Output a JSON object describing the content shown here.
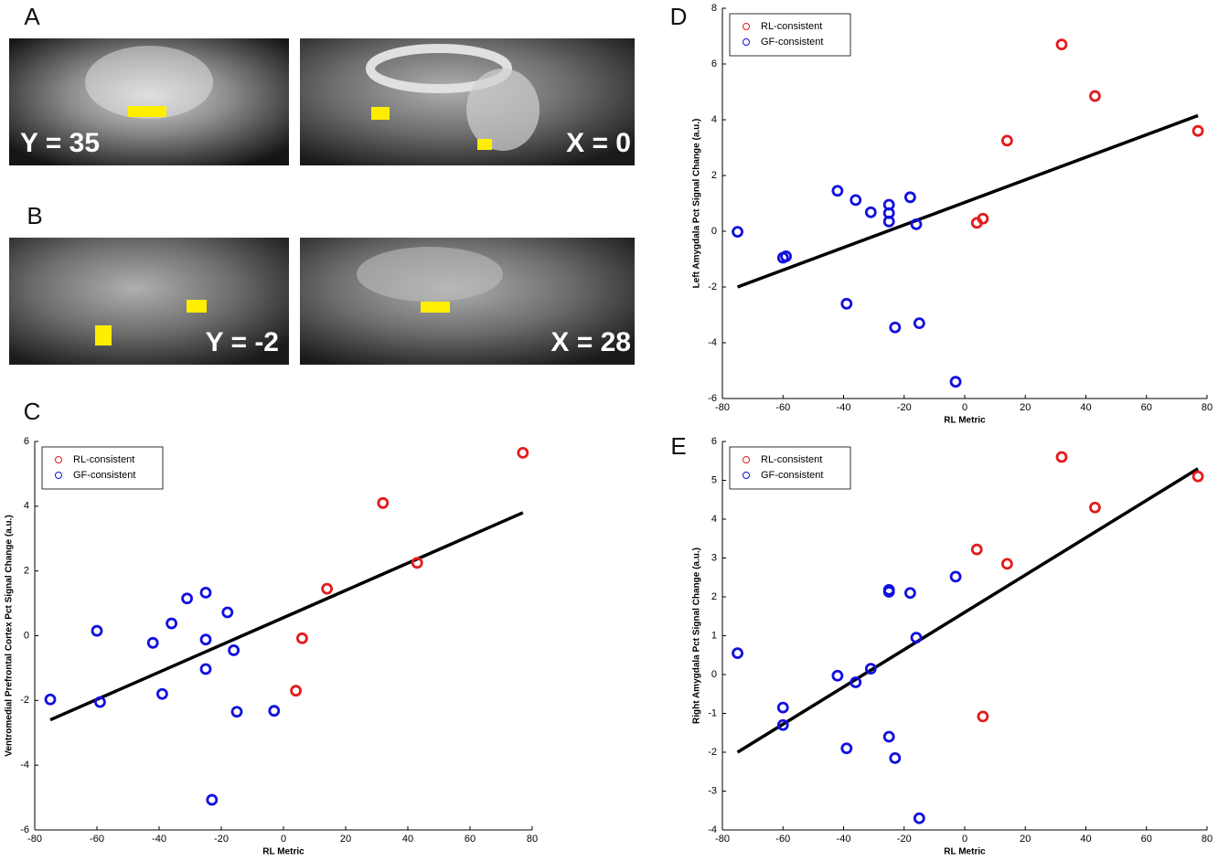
{
  "panel_labels": [
    "A",
    "B",
    "C",
    "D",
    "E"
  ],
  "brain_images": [
    {
      "label": "Y = 35"
    },
    {
      "label": "X = 0"
    },
    {
      "label": "Y = -2"
    },
    {
      "label": "X = 28"
    }
  ],
  "chart_data": [
    {
      "type": "scatter",
      "xlabel": "RL Metric",
      "ylabel": "Ventromedial Prefrontal Cortex Pct Signal Change (a.u.)",
      "xlim": [
        -80,
        80
      ],
      "xticks": [
        -80,
        -60,
        -40,
        -20,
        0,
        20,
        40,
        60,
        80
      ],
      "ylim": [
        -6,
        6
      ],
      "yticks": [
        -6,
        -4,
        -2,
        0,
        2,
        4,
        6
      ],
      "legend": "upper left",
      "series": [
        {
          "name": "RL-consistent",
          "color": "#e41a1c",
          "x": [
            77,
            32,
            43,
            14,
            6,
            4
          ],
          "values": [
            5.65,
            4.1,
            2.25,
            1.45,
            -0.08,
            -1.7
          ]
        },
        {
          "name": "GF-consistent",
          "color": "#1010e0",
          "x": [
            -75,
            -60,
            -59,
            -42,
            -39,
            -36,
            -31,
            -25,
            -25,
            -25,
            -18,
            -16,
            -15,
            -23,
            -3
          ],
          "values": [
            -1.97,
            0.15,
            -2.05,
            -0.22,
            -1.8,
            0.38,
            1.15,
            1.33,
            -0.12,
            -1.03,
            0.72,
            -0.45,
            -2.35,
            -5.07,
            -2.32
          ]
        }
      ],
      "fit": {
        "color": "#000000",
        "x": [
          -75,
          77
        ],
        "values": [
          -2.6,
          3.8
        ]
      }
    },
    {
      "type": "scatter",
      "xlabel": "RL Metric",
      "ylabel": "Left Amygdala Pct Signal Change (a.u.)",
      "xlim": [
        -80,
        80
      ],
      "xticks": [
        -80,
        -60,
        -40,
        -20,
        0,
        20,
        40,
        60,
        80
      ],
      "ylim": [
        -6,
        8
      ],
      "yticks": [
        -6,
        -4,
        -2,
        0,
        2,
        4,
        6,
        8
      ],
      "legend": "upper left",
      "series": [
        {
          "name": "RL-consistent",
          "color": "#e41a1c",
          "x": [
            77,
            32,
            43,
            14,
            4,
            6
          ],
          "values": [
            3.6,
            6.7,
            4.85,
            3.25,
            0.3,
            0.45
          ]
        },
        {
          "name": "GF-consistent",
          "color": "#1010e0",
          "x": [
            -75,
            -60,
            -59,
            -42,
            -39,
            -36,
            -31,
            -25,
            -25,
            -25,
            -18,
            -16,
            -15,
            -23,
            -3
          ],
          "values": [
            -0.02,
            -0.95,
            -0.9,
            1.45,
            -2.6,
            1.12,
            0.68,
            0.95,
            0.65,
            0.35,
            1.22,
            0.25,
            -3.3,
            -3.45,
            -5.4
          ]
        }
      ],
      "fit": {
        "color": "#000000",
        "x": [
          -75,
          77
        ],
        "values": [
          -2.0,
          4.15
        ]
      }
    },
    {
      "type": "scatter",
      "xlabel": "RL Metric",
      "ylabel": "Right Amygdala Pct Signal Change (a.u.)",
      "xlim": [
        -80,
        80
      ],
      "xticks": [
        -80,
        -60,
        -40,
        -20,
        0,
        20,
        40,
        60,
        80
      ],
      "ylim": [
        -4,
        6
      ],
      "yticks": [
        -4,
        -3,
        -2,
        -1,
        0,
        1,
        2,
        3,
        4,
        5,
        6
      ],
      "legend": "upper left",
      "series": [
        {
          "name": "RL-consistent",
          "color": "#e41a1c",
          "x": [
            77,
            32,
            43,
            14,
            4,
            6
          ],
          "values": [
            5.1,
            5.6,
            4.3,
            2.85,
            3.22,
            -1.08
          ]
        },
        {
          "name": "GF-consistent",
          "color": "#1010e0",
          "x": [
            -75,
            -60,
            -60,
            -42,
            -39,
            -36,
            -31,
            -25,
            -25,
            -25,
            -18,
            -16,
            -23,
            -15,
            -3
          ],
          "values": [
            0.55,
            -0.85,
            -1.3,
            -0.03,
            -1.9,
            -0.2,
            0.15,
            2.18,
            2.13,
            -1.6,
            2.1,
            0.95,
            -2.15,
            -3.7,
            2.52
          ]
        }
      ],
      "fit": {
        "color": "#000000",
        "x": [
          -75,
          77
        ],
        "values": [
          -2.0,
          5.3
        ]
      }
    }
  ]
}
